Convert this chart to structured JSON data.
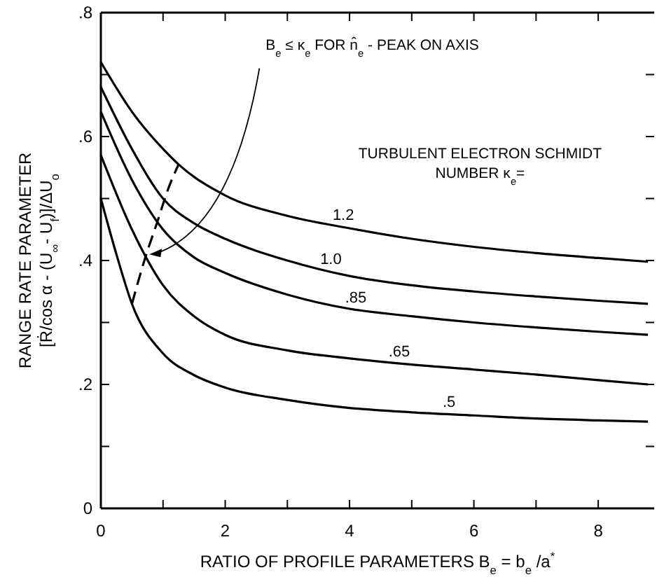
{
  "chart_data": {
    "type": "line",
    "xlabel": "RATIO OF PROFILE PARAMETERS B$_{e}$ = b$_{e}$ /a$^{*}$",
    "ylabel": "RANGE RATE PARAMETER\n[Ṙ/cos α - (U$_{∞}$- U$_{f}$)]/ΔU$_{o}$",
    "xlim": [
      0,
      8.9
    ],
    "ylim": [
      0,
      0.8
    ],
    "xticks": [
      0,
      {
        "value": 1,
        "label": null
      },
      2,
      {
        "value": 3,
        "label": null
      },
      4,
      {
        "value": 5,
        "label": null
      },
      6,
      {
        "value": 7,
        "label": null
      },
      8
    ],
    "yticks": [
      0,
      {
        "value": 0.1,
        "label": null
      },
      {
        "value": 0.2,
        "label": ".2"
      },
      {
        "value": 0.3,
        "label": null
      },
      {
        "value": 0.4,
        "label": ".4"
      },
      {
        "value": 0.5,
        "label": null
      },
      {
        "value": 0.6,
        "label": ".6"
      },
      {
        "value": 0.7,
        "label": null
      },
      {
        "value": 0.8,
        "label": ".8"
      }
    ],
    "grid": false,
    "series": [
      {
        "name": "1.2",
        "color": "#000000",
        "x": [
          0,
          0.5,
          1,
          1.25,
          2,
          3,
          4,
          5,
          6,
          7,
          8,
          8.8
        ],
        "values": [
          0.72,
          0.64,
          0.58,
          0.555,
          0.505,
          0.472,
          0.452,
          0.435,
          0.422,
          0.412,
          0.404,
          0.398
        ]
      },
      {
        "name": "1.0",
        "color": "#000000",
        "x": [
          0,
          0.5,
          1,
          1.5,
          2,
          3,
          4,
          5,
          6,
          7,
          8,
          8.8
        ],
        "values": [
          0.68,
          0.58,
          0.5,
          0.46,
          0.435,
          0.4,
          0.375,
          0.36,
          0.35,
          0.342,
          0.335,
          0.33
        ]
      },
      {
        "name": ".85",
        "color": "#000000",
        "x": [
          0,
          0.5,
          1,
          1.5,
          2,
          3,
          4,
          5,
          6,
          7,
          8,
          8.8
        ],
        "values": [
          0.64,
          0.53,
          0.45,
          0.405,
          0.38,
          0.345,
          0.322,
          0.31,
          0.3,
          0.292,
          0.285,
          0.28
        ]
      },
      {
        "name": ".65",
        "color": "#000000",
        "x": [
          0,
          0.5,
          1,
          1.5,
          2,
          3,
          4,
          5,
          6,
          7,
          8,
          8.8
        ],
        "values": [
          0.57,
          0.45,
          0.36,
          0.31,
          0.28,
          0.255,
          0.242,
          0.232,
          0.224,
          0.216,
          0.207,
          0.2
        ]
      },
      {
        "name": ".5",
        "color": "#000000",
        "x": [
          0,
          0.25,
          0.5,
          1,
          1.5,
          2,
          3,
          4,
          5,
          6,
          7,
          8,
          8.8
        ],
        "values": [
          0.5,
          0.41,
          0.33,
          0.25,
          0.215,
          0.195,
          0.175,
          0.162,
          0.155,
          0.15,
          0.145,
          0.142,
          0.14
        ]
      },
      {
        "color": "#000000",
        "line_style": "dashed",
        "x": [
          0.5,
          0.7,
          0.9,
          1.1,
          1.25
        ],
        "values": [
          0.33,
          0.4,
          0.46,
          0.52,
          0.555
        ]
      }
    ],
    "annotations": [
      "B$_{e}$ ≤ κ$_{e}$ FOR n̂$_{e}$ - PEAK ON AXIS",
      "TURBULENT ELECTRON SCHMIDT\nNUMBER κ$_{e}$="
    ]
  }
}
